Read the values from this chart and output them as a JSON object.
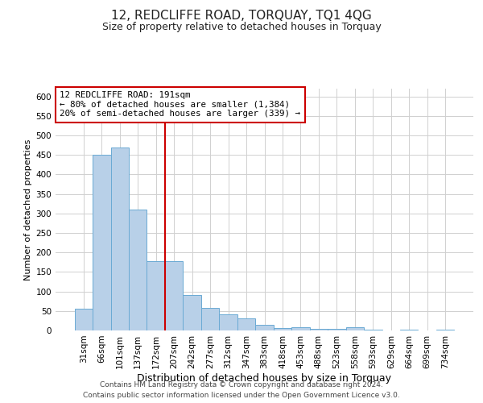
{
  "title": "12, REDCLIFFE ROAD, TORQUAY, TQ1 4QG",
  "subtitle": "Size of property relative to detached houses in Torquay",
  "xlabel": "Distribution of detached houses by size in Torquay",
  "ylabel": "Number of detached properties",
  "bar_labels": [
    "31sqm",
    "66sqm",
    "101sqm",
    "137sqm",
    "172sqm",
    "207sqm",
    "242sqm",
    "277sqm",
    "312sqm",
    "347sqm",
    "383sqm",
    "418sqm",
    "453sqm",
    "488sqm",
    "523sqm",
    "558sqm",
    "593sqm",
    "629sqm",
    "664sqm",
    "699sqm",
    "734sqm"
  ],
  "bar_values": [
    55,
    450,
    470,
    310,
    178,
    178,
    90,
    58,
    42,
    30,
    15,
    7,
    8,
    5,
    5,
    8,
    2,
    0,
    3,
    0,
    2
  ],
  "bar_color": "#b8d0e8",
  "bar_edge_color": "#6aaad4",
  "vline_color": "#cc0000",
  "annotation_title": "12 REDCLIFFE ROAD: 191sqm",
  "annotation_line1": "← 80% of detached houses are smaller (1,384)",
  "annotation_line2": "20% of semi-detached houses are larger (339) →",
  "annotation_box_color": "#ffffff",
  "annotation_box_edge": "#cc0000",
  "ylim": [
    0,
    620
  ],
  "yticks": [
    0,
    50,
    100,
    150,
    200,
    250,
    300,
    350,
    400,
    450,
    500,
    550,
    600
  ],
  "footer_line1": "Contains HM Land Registry data © Crown copyright and database right 2024.",
  "footer_line2": "Contains public sector information licensed under the Open Government Licence v3.0.",
  "background_color": "#ffffff",
  "grid_color": "#d0d0d0",
  "title_fontsize": 11,
  "subtitle_fontsize": 9,
  "xlabel_fontsize": 9,
  "ylabel_fontsize": 8,
  "tick_fontsize": 7.5,
  "footer_fontsize": 6.5
}
